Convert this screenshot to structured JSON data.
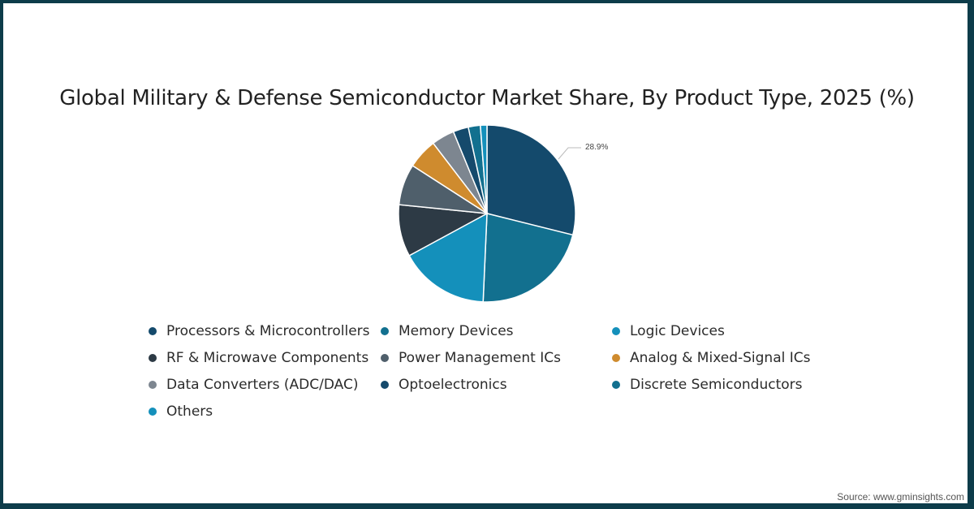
{
  "title": "Global Military & Defense Semiconductor Market Share, By Product Type, 2025 (%)",
  "source": "Source: www.gminsights.com",
  "label_text": "28.9%",
  "chart_data": {
    "type": "pie",
    "title": "Global Military & Defense Semiconductor Market Share, By Product Type, 2025 (%)",
    "categories": [
      "Processors & Microcontrollers",
      "Memory Devices",
      "Logic Devices",
      "RF & Microwave Components",
      "Power Management ICs",
      "Analog & Mixed-Signal ICs",
      "Data Converters (ADC/DAC)",
      "Optoelectronics",
      "Discrete Semiconductors",
      "Others"
    ],
    "values": [
      28.9,
      21.8,
      16.4,
      9.5,
      7.5,
      5.5,
      4.2,
      2.8,
      2.2,
      1.2
    ],
    "colors": [
      "#144a6c",
      "#12708f",
      "#1490bb",
      "#2d3a45",
      "#4f5f6b",
      "#cf8b2e",
      "#7d8690",
      "#154a6c",
      "#12708f",
      "#1490bb"
    ],
    "annotations": [
      {
        "category": "Processors & Microcontrollers",
        "text": "28.9%"
      }
    ],
    "legend_position": "bottom"
  },
  "legend": [
    {
      "label": "Processors & Microcontrollers",
      "color": "#144a6c"
    },
    {
      "label": "Memory Devices",
      "color": "#12708f"
    },
    {
      "label": "Logic Devices",
      "color": "#1490bb"
    },
    {
      "label": "RF & Microwave Components",
      "color": "#2d3a45"
    },
    {
      "label": "Power Management ICs",
      "color": "#4f5f6b"
    },
    {
      "label": "Analog & Mixed-Signal ICs",
      "color": "#cf8b2e"
    },
    {
      "label": "Data Converters (ADC/DAC)",
      "color": "#7d8690"
    },
    {
      "label": "Optoelectronics",
      "color": "#154a6c"
    },
    {
      "label": "Discrete Semiconductors",
      "color": "#12708f"
    },
    {
      "label": "Others",
      "color": "#1490bb"
    }
  ]
}
